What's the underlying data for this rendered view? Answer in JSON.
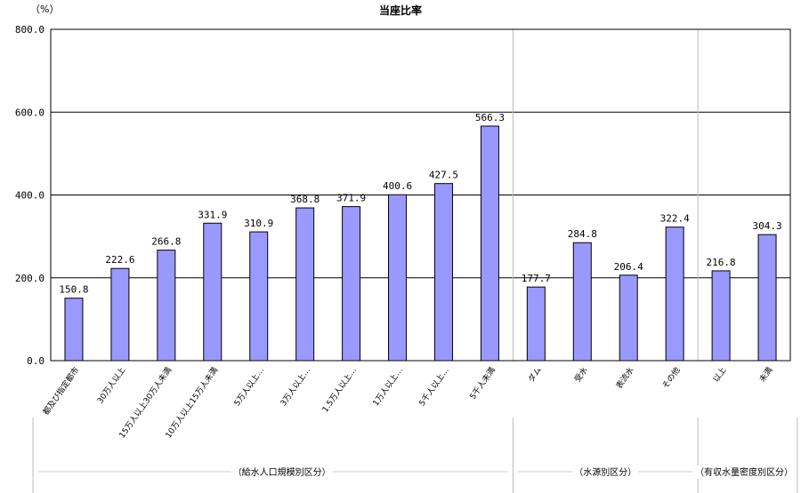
{
  "chart_data": {
    "type": "bar",
    "title": "当座比率",
    "y_unit": "（%）",
    "ylim": [
      0,
      800
    ],
    "yticks": [
      "0.0",
      "200.0",
      "400.0",
      "600.0",
      "800.0"
    ],
    "grid": true,
    "bar_color": "#9999ff",
    "categories": [
      "都及び指定都市",
      "30万人以上",
      "15万人以上30万人未満",
      "10万人以上15万人未満",
      "5万人以上…",
      "3万人以上…",
      "1.5万人以上…",
      "1万人以上…",
      "5千人以上…",
      "5千人未満",
      "ダム",
      "受水",
      "表流水",
      "その他",
      "以上",
      "未満"
    ],
    "values": [
      150.8,
      222.6,
      266.8,
      331.9,
      310.9,
      368.8,
      371.9,
      400.6,
      427.5,
      566.3,
      177.7,
      284.8,
      206.4,
      322.4,
      216.8,
      304.3
    ],
    "value_labels": [
      "150.8",
      "222.6",
      "266.8",
      "331.9",
      "310.9",
      "368.8",
      "371.9",
      "400.6",
      "427.5",
      "566.3",
      "177.7",
      "284.8",
      "206.4",
      "322.4",
      "216.8",
      "304.3"
    ],
    "groups": [
      {
        "label": "（給水人口規模別区分）",
        "start": 0,
        "end": 9
      },
      {
        "label": "（水源別区分）",
        "start": 10,
        "end": 13
      },
      {
        "label": "（有収水量密度別区分）",
        "start": 14,
        "end": 15
      }
    ]
  }
}
